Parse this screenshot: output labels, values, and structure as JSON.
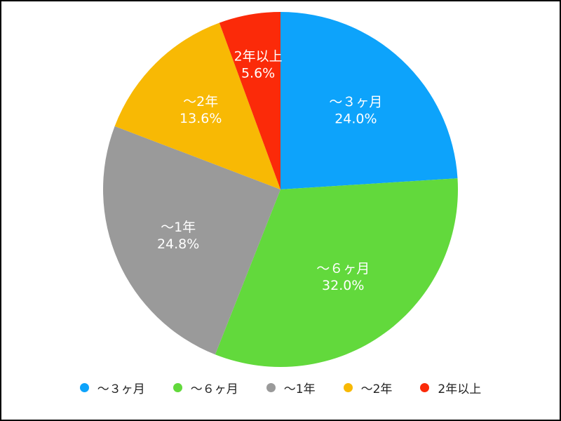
{
  "chart_data": {
    "type": "pie",
    "title": "",
    "start_angle_deg": 0,
    "direction": "clockwise",
    "legend_position": "bottom",
    "slices": [
      {
        "label": "～３ヶ月",
        "value": 24.0,
        "pct_label": "24.0%",
        "color": "#0DA3FB"
      },
      {
        "label": "～６ヶ月",
        "value": 32.0,
        "pct_label": "32.0%",
        "color": "#62D93C"
      },
      {
        "label": "～1年",
        "value": 24.8,
        "pct_label": "24.8%",
        "color": "#9A9A9A"
      },
      {
        "label": "～2年",
        "value": 13.6,
        "pct_label": "13.6%",
        "color": "#F8B904"
      },
      {
        "label": "2年以上",
        "value": 5.6,
        "pct_label": "5.6%",
        "color": "#FB2A09"
      }
    ]
  }
}
